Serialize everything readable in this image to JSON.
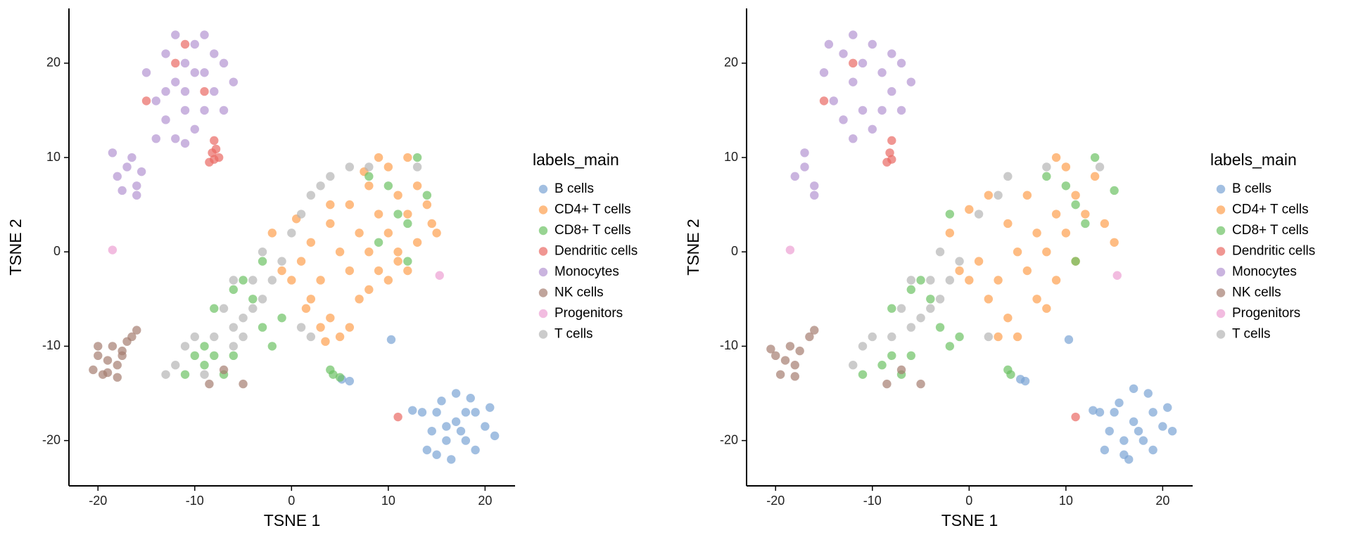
{
  "chart_data": [
    {
      "type": "scatter",
      "x_label": "TSNE 1",
      "y_label": "TSNE 2",
      "legend_title": "labels_main",
      "legend": "right",
      "grid": false,
      "xlim": [
        -23,
        23.1
      ],
      "ylim": [
        -24.8,
        25.8
      ],
      "xticks": [
        -20,
        -10,
        0,
        10,
        20
      ],
      "yticks": [
        -20,
        -10,
        0,
        10,
        20
      ],
      "series": [
        {
          "name": "B cells",
          "color": "#7ba4d4",
          "x": [
            17,
            15,
            19,
            16,
            18,
            14.5,
            20,
            17,
            18.5,
            15.5,
            16.5,
            19,
            13.5,
            20.5,
            14,
            17.5,
            16,
            18,
            12.5,
            10.3,
            5.2,
            6,
            21,
            15
          ],
          "values": [
            -18,
            -17,
            -17,
            -20,
            -20,
            -19,
            -18.5,
            -15,
            -15.5,
            -15.8,
            -22,
            -21,
            -17,
            -16.5,
            -21,
            -19,
            -18.5,
            -17,
            -16.8,
            -9.3,
            -13.5,
            -13.7,
            -19.5,
            -21.5
          ]
        },
        {
          "name": "CD4+ T cells",
          "color": "#fda04f",
          "x": [
            5,
            3,
            7,
            9,
            11,
            2,
            4,
            6,
            8,
            10,
            12,
            13,
            10,
            8,
            6,
            4,
            1,
            0,
            3,
            5,
            7,
            9,
            11,
            13,
            14,
            12,
            9,
            4,
            2,
            -1,
            14.5,
            6,
            8,
            11,
            1.5,
            7.5,
            3.5,
            -2,
            0.5,
            15,
            12,
            10
          ],
          "values": [
            0,
            -3,
            2,
            4,
            6,
            -5,
            -7,
            -2,
            0,
            2,
            4,
            7,
            9,
            7,
            5,
            3,
            -1,
            -3,
            -8,
            -9,
            -5,
            -2,
            0,
            1,
            5,
            10,
            10,
            5,
            1,
            -2,
            3,
            -8,
            -4,
            -1,
            -6,
            8.5,
            -9.5,
            2,
            3.5,
            2,
            -2,
            -3
          ]
        },
        {
          "name": "CD8+ T cells",
          "color": "#6cc264",
          "x": [
            10,
            12,
            13,
            8,
            11,
            14,
            9,
            -4,
            -6,
            -8,
            -9,
            -7,
            -10,
            -11,
            -6,
            -2,
            -1,
            -3,
            -9,
            -8,
            4,
            4.3,
            5,
            12,
            -5,
            -3
          ],
          "values": [
            7,
            3,
            10,
            8,
            4,
            6,
            1,
            -5,
            -4,
            -11,
            -12,
            -13,
            -11,
            -13,
            -11,
            -10,
            -7,
            -8,
            -10,
            -6,
            -12.5,
            -13,
            -13.3,
            -1,
            -3,
            -1
          ]
        },
        {
          "name": "Dendritic cells",
          "color": "#ea6a64",
          "x": [
            -8.2,
            -8,
            -7.5,
            -8.5,
            -8,
            -9,
            -11,
            -12,
            -15,
            11,
            -7.8
          ],
          "values": [
            10.5,
            9.8,
            10,
            9.5,
            11.8,
            17,
            22,
            20,
            16,
            -17.5,
            10.9
          ]
        },
        {
          "name": "Monocytes",
          "color": "#b394d2",
          "x": [
            -11,
            -12,
            -10,
            -9,
            -13,
            -8,
            -11,
            -13,
            -10,
            -12,
            -14,
            -9,
            -7,
            -6,
            -12,
            -9,
            -14,
            -11,
            -10,
            -8,
            -15,
            -13,
            -17,
            -16,
            -18,
            -16.5,
            -17.5,
            -15.5,
            -18.5,
            -16,
            -11,
            -7
          ],
          "values": [
            20,
            18,
            22,
            19,
            21,
            17,
            15,
            14,
            13,
            12,
            16,
            15,
            20,
            18,
            23,
            23,
            12,
            17,
            19,
            21,
            19,
            17,
            9,
            7,
            8,
            10,
            6.5,
            8.5,
            10.5,
            6,
            11.5,
            15
          ]
        },
        {
          "name": "NK cells",
          "color": "#a57e70",
          "x": [
            -19,
            -18,
            -20,
            -19.5,
            -18.5,
            -20.5,
            -17.5,
            -19,
            -18,
            -20,
            -17,
            -16,
            -16.5,
            -17.5,
            -8.5,
            -7,
            -5
          ],
          "values": [
            -11.5,
            -12,
            -11,
            -13,
            -10,
            -12.5,
            -11,
            -12.8,
            -13.3,
            -10,
            -9.5,
            -8.3,
            -9,
            -10.5,
            -14,
            -12.5,
            -14
          ]
        },
        {
          "name": "Progenitors",
          "color": "#ec9fd3",
          "x": [
            -18.5,
            15.3
          ],
          "values": [
            0.2,
            -2.5
          ]
        },
        {
          "name": "T cells",
          "color": "#b5b5b5",
          "x": [
            -5,
            -6,
            -4,
            -7,
            -5,
            -3,
            -6,
            -8,
            -10,
            -12,
            -11,
            -9,
            -2,
            -1,
            0,
            1,
            2,
            3,
            4,
            6,
            8,
            -4,
            -6,
            -3,
            13,
            1,
            2,
            -13
          ],
          "values": [
            -7,
            -8,
            -6,
            -6,
            -9,
            -5,
            -10,
            -9,
            -9,
            -12,
            -10,
            -13,
            -3,
            -1,
            2,
            4,
            6,
            7,
            8,
            9,
            9,
            -3,
            -3,
            0,
            9,
            -8,
            -9,
            -13
          ]
        }
      ]
    },
    {
      "type": "scatter",
      "x_label": "TSNE 1",
      "y_label": "TSNE 2",
      "legend_title": "labels_main",
      "legend": "right",
      "grid": false,
      "xlim": [
        -23,
        23.1
      ],
      "ylim": [
        -24.8,
        25.8
      ],
      "xticks": [
        -20,
        -10,
        0,
        10,
        20
      ],
      "yticks": [
        -20,
        -10,
        0,
        10,
        20
      ],
      "series": [
        {
          "name": "B cells",
          "color": "#7ba4d4",
          "x": [
            17,
            15,
            19,
            16,
            18,
            14.5,
            20,
            17,
            18.5,
            15.5,
            16.5,
            19,
            13.5,
            20.5,
            14,
            21,
            12.8,
            10.3,
            5.3,
            5.8,
            16,
            17.5
          ],
          "values": [
            -18,
            -17,
            -17,
            -20,
            -20,
            -19,
            -18.5,
            -14.5,
            -15,
            -16,
            -22,
            -21,
            -17,
            -16.5,
            -21,
            -19,
            -16.8,
            -9.3,
            -13.5,
            -13.7,
            -21.5,
            -19
          ]
        },
        {
          "name": "CD4+ T cells",
          "color": "#fda04f",
          "x": [
            5,
            3,
            7,
            9,
            11,
            2,
            4,
            6,
            8,
            10,
            12,
            13,
            9,
            6,
            4,
            1,
            0,
            3,
            5,
            7,
            9,
            11,
            14,
            10,
            2,
            -1,
            15,
            8,
            -2,
            0
          ],
          "values": [
            0,
            -3,
            2,
            4,
            6,
            -5,
            -7,
            -2,
            0,
            2,
            4,
            8,
            10,
            6,
            3,
            -1,
            -3,
            -9,
            -9,
            -5,
            -3,
            -1,
            3,
            9,
            6,
            -2,
            1,
            -6,
            2,
            4.5
          ]
        },
        {
          "name": "CD8+ T cells",
          "color": "#6cc264",
          "x": [
            10,
            12,
            13,
            8,
            11,
            15,
            11,
            -4,
            -6,
            -8,
            -9,
            -7,
            -11,
            -6,
            -2,
            -1,
            -3,
            -8,
            4,
            4.3,
            -5,
            -2
          ],
          "values": [
            7,
            3,
            10,
            8,
            5,
            6.5,
            -1,
            -5,
            -4,
            -11,
            -12,
            -13,
            -13,
            -11,
            -10,
            -9,
            -8,
            -6,
            -12.5,
            -13,
            -3,
            4
          ]
        },
        {
          "name": "Dendritic cells",
          "color": "#ea6a64",
          "x": [
            -8.2,
            -8,
            -8.5,
            -8,
            -12,
            -15,
            11
          ],
          "values": [
            10.5,
            9.8,
            9.5,
            11.8,
            20,
            16,
            -17.5
          ]
        },
        {
          "name": "Monocytes",
          "color": "#b394d2",
          "x": [
            -11,
            -12,
            -10,
            -9,
            -13,
            -8,
            -11,
            -13,
            -10,
            -12,
            -14,
            -9,
            -7,
            -6,
            -12,
            -8,
            -15,
            -17,
            -16,
            -18,
            -17,
            -16,
            -7,
            -14.5
          ],
          "values": [
            20,
            18,
            22,
            19,
            21,
            17,
            15,
            14,
            13,
            12,
            16,
            15,
            20,
            18,
            23,
            21,
            19,
            9,
            7,
            8,
            10.5,
            6,
            15,
            22
          ]
        },
        {
          "name": "NK cells",
          "color": "#a57e70",
          "x": [
            -19,
            -18,
            -20,
            -19.5,
            -18.5,
            -20.5,
            -17.5,
            -18,
            -16.5,
            -16,
            -8.5,
            -7,
            -5
          ],
          "values": [
            -11.5,
            -12,
            -11,
            -13,
            -10,
            -10.3,
            -10.5,
            -13.2,
            -9,
            -8.3,
            -14,
            -12.5,
            -14
          ]
        },
        {
          "name": "Progenitors",
          "color": "#ec9fd3",
          "x": [
            -18.5,
            15.3
          ],
          "values": [
            0.2,
            -2.5
          ]
        },
        {
          "name": "T cells",
          "color": "#b5b5b5",
          "x": [
            -5,
            -6,
            -4,
            -7,
            -3,
            -8,
            -10,
            -12,
            -11,
            -2,
            -1,
            1,
            3,
            4,
            8,
            -4,
            -6,
            -3,
            13.5,
            2
          ],
          "values": [
            -7,
            -8,
            -6,
            -6,
            -5,
            -9,
            -9,
            -12,
            -10,
            -3,
            -1,
            4,
            6,
            8,
            9,
            -3,
            -3,
            0,
            9,
            -9
          ]
        }
      ]
    }
  ]
}
